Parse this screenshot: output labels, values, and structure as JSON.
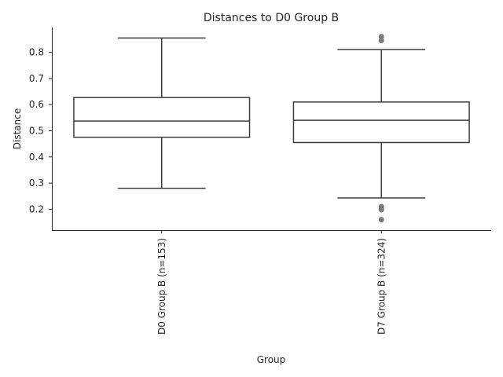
{
  "chart_data": {
    "type": "box",
    "title": "Distances to D0 Group B",
    "xlabel": "Group",
    "ylabel": "Distance",
    "ylim": [
      0.12,
      0.895
    ],
    "yticks": [
      0.2,
      0.3,
      0.4,
      0.5,
      0.6,
      0.7,
      0.8
    ],
    "grid": false,
    "categories": [
      "D0 Group B (n=153)",
      "D7 Group B (n=324)"
    ],
    "boxes": [
      {
        "whisker_low": 0.28,
        "q1": 0.475,
        "median": 0.537,
        "q3": 0.627,
        "whisker_high": 0.855,
        "outliers": []
      },
      {
        "whisker_low": 0.243,
        "q1": 0.455,
        "median": 0.54,
        "q3": 0.61,
        "whisker_high": 0.81,
        "outliers": [
          0.86,
          0.845,
          0.21,
          0.2,
          0.198,
          0.16
        ]
      }
    ]
  }
}
